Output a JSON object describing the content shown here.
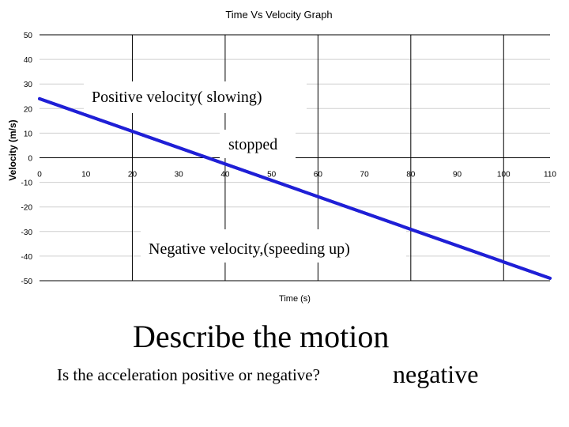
{
  "chart_data": {
    "type": "line",
    "title": "Time Vs Velocity Graph",
    "xlabel": "Time (s)",
    "ylabel": "Velocity (m/s)",
    "xlim": [
      0,
      110
    ],
    "ylim": [
      -50,
      50
    ],
    "x_ticks": [
      0,
      10,
      20,
      30,
      40,
      50,
      60,
      70,
      80,
      90,
      100,
      110
    ],
    "y_ticks": [
      50,
      40,
      30,
      20,
      10,
      0,
      -10,
      -20,
      -30,
      -40,
      -50
    ],
    "grid": true,
    "series": [
      {
        "x": [
          0,
          110
        ],
        "y": [
          24,
          -49
        ],
        "color": "#1f1fd6"
      }
    ],
    "annotations": [
      "Positive velocity( slowing)",
      "stopped",
      "Negative velocity,(speeding up)"
    ]
  },
  "caption": {
    "heading": "Describe the motion",
    "question": "Is the acceleration positive or negative?",
    "answer": "negative"
  }
}
